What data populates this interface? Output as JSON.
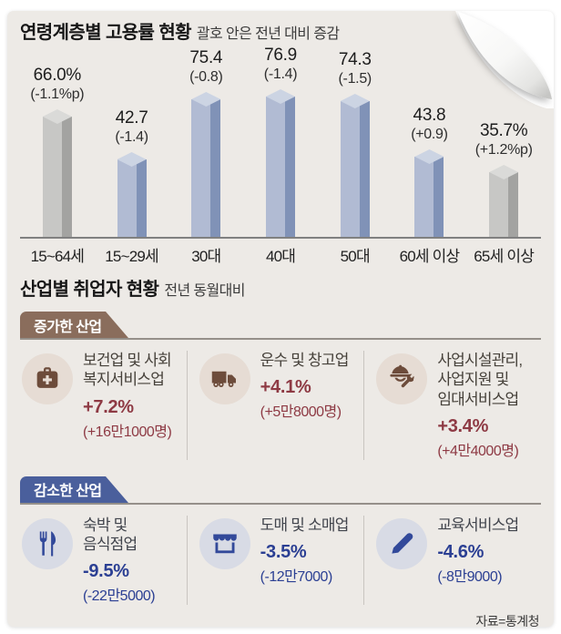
{
  "chart_data": {
    "type": "bar",
    "title": "연령계층별 고용률 현황",
    "subtitle": "괄호 안은 전년 대비 증감",
    "categories": [
      "15~64세",
      "15~29세",
      "30대",
      "40대",
      "50대",
      "60세 이상",
      "65세 이상"
    ],
    "values": [
      66.0,
      42.7,
      75.4,
      76.9,
      74.3,
      43.8,
      35.7
    ],
    "value_labels": [
      "66.0%",
      "42.7",
      "75.4",
      "76.9",
      "74.3",
      "43.8",
      "35.7%"
    ],
    "change_labels": [
      "(-1.1%p)",
      "(-1.4)",
      "(-0.8)",
      "(-1.4)",
      "(-1.5)",
      "(+0.9)",
      "(+1.2%p)"
    ],
    "bar_styles": [
      "gray",
      "blue",
      "blue",
      "blue",
      "blue",
      "blue",
      "gray"
    ],
    "xlabel": "",
    "ylabel": "",
    "ylim": [
      0,
      80
    ],
    "grid": false,
    "legend": "none"
  },
  "industry": {
    "title": "산업별 취업자 현황",
    "subtitle": "전년 동월대비",
    "groups": [
      {
        "badge": "증가한 산업",
        "theme": "increase",
        "items": [
          {
            "icon": "medical-bag-icon",
            "name": "보건업 및 사회\n복지서비스업",
            "pct": "+7.2%",
            "count": "(+16만1000명)"
          },
          {
            "icon": "truck-icon",
            "name": "운수 및 창고업",
            "pct": "+4.1%",
            "count": "(+5만8000명)"
          },
          {
            "icon": "construction-worker-icon",
            "name": "사업시설관리,\n사업지원 및\n임대서비스업",
            "pct": "+3.4%",
            "count": "(+4만4000명)"
          }
        ]
      },
      {
        "badge": "감소한 산업",
        "theme": "decrease",
        "items": [
          {
            "icon": "fork-knife-icon",
            "name": "숙박 및\n음식점업",
            "pct": "-9.5%",
            "count": "(-22만5000)"
          },
          {
            "icon": "store-icon",
            "name": "도매 및 소매업",
            "pct": "-3.5%",
            "count": "(-12만7000)"
          },
          {
            "icon": "pencil-icon",
            "name": "교육서비스업",
            "pct": "-4.6%",
            "count": "(-8만9000)"
          }
        ]
      }
    ]
  },
  "source": "자료=통계청",
  "colors": {
    "paper_bg": "#edeae6",
    "title_text": "#171717",
    "subtitle_text": "#3c3c3c",
    "value_text": "#1d1d1d",
    "change_text": "#2e2e2e",
    "category_text": "#222222",
    "axis": "#808080",
    "rule": "#95908a",
    "divider": "#c9c5c0",
    "bar_blue_front": "#b1bbd3",
    "bar_blue_side": "#8092b7",
    "bar_blue_top": "#ccd4e3",
    "bar_gray_front": "#c7c7c5",
    "bar_gray_side": "#a3a3a1",
    "bar_gray_top": "#dadad8",
    "inc_badge": "#8a6d5c",
    "inc_circle": "#e6dcd4",
    "inc_icon": "#6d4c3b",
    "inc_name": "#46413a",
    "inc_value": "#8e3a44",
    "dec_badge": "#4a5f9c",
    "dec_circle": "#d8dbe5",
    "dec_icon": "#32499a",
    "dec_name": "#42454d",
    "dec_value": "#2b3f93",
    "badge_text": "#ffffff",
    "source_text": "#3a3a3a"
  }
}
